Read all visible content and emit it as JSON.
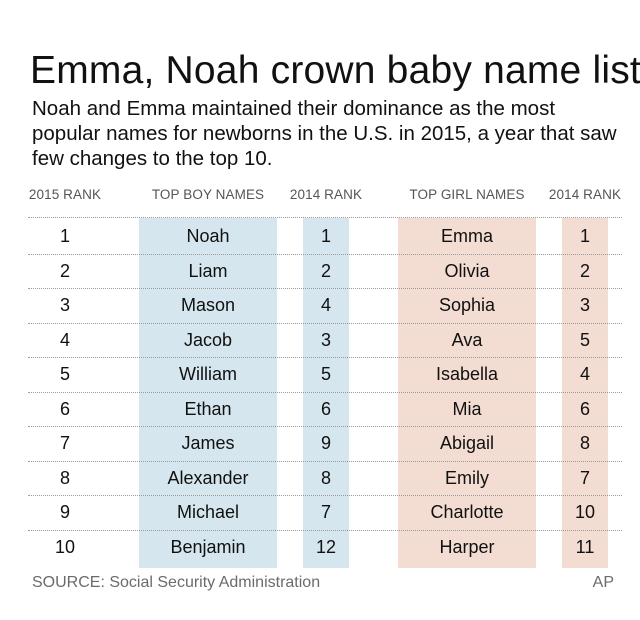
{
  "title": "Emma, Noah crown baby name list",
  "subtitle": "Noah and Emma maintained their dominance as the most popular names for newborns in the U.S. in 2015, a year that saw few changes to the top 10.",
  "source": "SOURCE: Social Security Administration",
  "credit": "AP",
  "colors": {
    "boy_column": "#d5e6ee",
    "girl_column": "#f3dcd2",
    "text": "#111111",
    "muted": "#555555"
  },
  "chart_data": {
    "type": "table",
    "columns": [
      "2015 RANK",
      "TOP BOY NAMES",
      "2014 RANK",
      "TOP GIRL NAMES",
      "2014 RANK"
    ],
    "rows": [
      [
        "1",
        "Noah",
        "1",
        "Emma",
        "1"
      ],
      [
        "2",
        "Liam",
        "2",
        "Olivia",
        "2"
      ],
      [
        "3",
        "Mason",
        "4",
        "Sophia",
        "3"
      ],
      [
        "4",
        "Jacob",
        "3",
        "Ava",
        "5"
      ],
      [
        "5",
        "William",
        "5",
        "Isabella",
        "4"
      ],
      [
        "6",
        "Ethan",
        "6",
        "Mia",
        "6"
      ],
      [
        "7",
        "James",
        "9",
        "Abigail",
        "8"
      ],
      [
        "8",
        "Alexander",
        "8",
        "Emily",
        "7"
      ],
      [
        "9",
        "Michael",
        "7",
        "Charlotte",
        "10"
      ],
      [
        "10",
        "Benjamin",
        "12",
        "Harper",
        "11"
      ]
    ]
  }
}
